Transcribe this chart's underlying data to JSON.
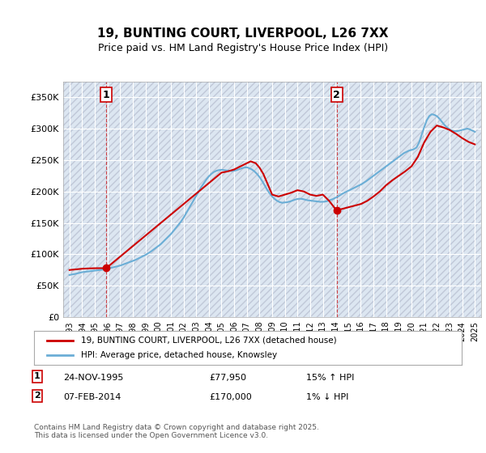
{
  "title": "19, BUNTING COURT, LIVERPOOL, L26 7XX",
  "subtitle": "Price paid vs. HM Land Registry's House Price Index (HPI)",
  "ylabel": "",
  "background_color": "#ffffff",
  "plot_bg_color": "#dce6f1",
  "grid_color": "#ffffff",
  "hatch_color": "#c0c8d8",
  "line1_color": "#cc0000",
  "line2_color": "#6baed6",
  "marker_color": "#cc0000",
  "point1_x": 1995.9,
  "point1_y": 77950,
  "point1_label": "1",
  "point2_x": 2014.1,
  "point2_y": 170000,
  "point2_label": "2",
  "ylim_min": 0,
  "ylim_max": 375000,
  "xlim_min": 1992.5,
  "xlim_max": 2025.5,
  "yticks": [
    0,
    50000,
    100000,
    150000,
    200000,
    250000,
    300000,
    350000
  ],
  "ytick_labels": [
    "£0",
    "£50K",
    "£100K",
    "£150K",
    "£200K",
    "£250K",
    "£300K",
    "£350K"
  ],
  "xticks": [
    1993,
    1994,
    1995,
    1996,
    1997,
    1998,
    1999,
    2000,
    2001,
    2002,
    2003,
    2004,
    2005,
    2006,
    2007,
    2008,
    2009,
    2010,
    2011,
    2012,
    2013,
    2014,
    2015,
    2016,
    2017,
    2018,
    2019,
    2020,
    2021,
    2022,
    2023,
    2024,
    2025
  ],
  "legend_label1": "19, BUNTING COURT, LIVERPOOL, L26 7XX (detached house)",
  "legend_label2": "HPI: Average price, detached house, Knowsley",
  "annotation1_date": "24-NOV-1995",
  "annotation1_price": "£77,950",
  "annotation1_hpi": "15% ↑ HPI",
  "annotation2_date": "07-FEB-2014",
  "annotation2_price": "£170,000",
  "annotation2_hpi": "1% ↓ HPI",
  "footer": "Contains HM Land Registry data © Crown copyright and database right 2025.\nThis data is licensed under the Open Government Licence v3.0.",
  "hpi_data_x": [
    1993.0,
    1993.1,
    1993.2,
    1993.3,
    1993.4,
    1993.5,
    1993.6,
    1993.7,
    1993.8,
    1993.9,
    1994.0,
    1994.2,
    1994.4,
    1994.6,
    1994.8,
    1995.0,
    1995.2,
    1995.4,
    1995.6,
    1995.8,
    1996.0,
    1996.2,
    1996.4,
    1996.6,
    1996.8,
    1997.0,
    1997.2,
    1997.4,
    1997.6,
    1997.8,
    1998.0,
    1998.2,
    1998.4,
    1998.6,
    1998.8,
    1999.0,
    1999.2,
    1999.4,
    1999.6,
    1999.8,
    2000.0,
    2000.2,
    2000.4,
    2000.6,
    2000.8,
    2001.0,
    2001.2,
    2001.4,
    2001.6,
    2001.8,
    2002.0,
    2002.2,
    2002.4,
    2002.6,
    2002.8,
    2003.0,
    2003.2,
    2003.4,
    2003.6,
    2003.8,
    2004.0,
    2004.2,
    2004.4,
    2004.6,
    2004.8,
    2005.0,
    2005.2,
    2005.4,
    2005.6,
    2005.8,
    2006.0,
    2006.2,
    2006.4,
    2006.6,
    2006.8,
    2007.0,
    2007.2,
    2007.4,
    2007.6,
    2007.8,
    2008.0,
    2008.2,
    2008.4,
    2008.6,
    2008.8,
    2009.0,
    2009.2,
    2009.4,
    2009.6,
    2009.8,
    2010.0,
    2010.2,
    2010.4,
    2010.6,
    2010.8,
    2011.0,
    2011.2,
    2011.4,
    2011.6,
    2011.8,
    2012.0,
    2012.2,
    2012.4,
    2012.6,
    2012.8,
    2013.0,
    2013.2,
    2013.4,
    2013.6,
    2013.8,
    2014.0,
    2014.2,
    2014.4,
    2014.6,
    2014.8,
    2015.0,
    2015.2,
    2015.4,
    2015.6,
    2015.8,
    2016.0,
    2016.2,
    2016.4,
    2016.6,
    2016.8,
    2017.0,
    2017.2,
    2017.4,
    2017.6,
    2017.8,
    2018.0,
    2018.2,
    2018.4,
    2018.6,
    2018.8,
    2019.0,
    2019.2,
    2019.4,
    2019.6,
    2019.8,
    2020.0,
    2020.2,
    2020.4,
    2020.6,
    2020.8,
    2021.0,
    2021.2,
    2021.4,
    2021.6,
    2021.8,
    2022.0,
    2022.2,
    2022.4,
    2022.6,
    2022.8,
    2023.0,
    2023.2,
    2023.4,
    2023.6,
    2023.8,
    2024.0,
    2024.2,
    2024.4,
    2024.6,
    2024.8,
    2025.0
  ],
  "hpi_data_y": [
    67000,
    67500,
    68000,
    68200,
    68500,
    69000,
    69500,
    70000,
    70500,
    71000,
    71500,
    72000,
    72500,
    73000,
    73500,
    74000,
    74500,
    75000,
    75500,
    76000,
    77000,
    78000,
    79000,
    80000,
    81000,
    82000,
    83500,
    85000,
    86500,
    88000,
    89500,
    91000,
    93000,
    95000,
    97000,
    99000,
    101500,
    104000,
    107000,
    110000,
    113000,
    116000,
    120000,
    124000,
    128000,
    132000,
    137000,
    142000,
    147000,
    152000,
    158000,
    165000,
    172000,
    179000,
    186000,
    193000,
    200000,
    207000,
    213000,
    219000,
    224000,
    228000,
    231000,
    233000,
    234000,
    234500,
    234000,
    233500,
    233000,
    232500,
    233000,
    234000,
    235500,
    237000,
    238000,
    238500,
    237000,
    235000,
    232000,
    228000,
    223000,
    217000,
    210000,
    203000,
    197000,
    192000,
    188000,
    185000,
    183000,
    182000,
    182500,
    183000,
    184000,
    185500,
    187000,
    188000,
    188500,
    188000,
    187000,
    186000,
    185500,
    185000,
    184500,
    184000,
    183500,
    183500,
    184000,
    185000,
    186500,
    188000,
    190000,
    192000,
    194500,
    197000,
    199000,
    201000,
    203000,
    205000,
    207000,
    209000,
    211000,
    213500,
    216000,
    219000,
    222000,
    225000,
    228000,
    231000,
    234000,
    237000,
    240000,
    243000,
    246000,
    249000,
    252000,
    255000,
    258000,
    261000,
    263000,
    265000,
    266000,
    267500,
    270000,
    278000,
    290000,
    302000,
    313000,
    320000,
    323000,
    322000,
    320000,
    316000,
    311000,
    306000,
    302000,
    299000,
    297000,
    296000,
    296000,
    297000,
    298000,
    299000,
    300000,
    299000,
    297000,
    295000
  ],
  "price_data_x": [
    1995.9,
    2014.1
  ],
  "price_data_y": [
    77950,
    170000
  ],
  "price_line_x": [
    1993.0,
    1993.5,
    1994.0,
    1994.5,
    1995.0,
    1995.5,
    1995.9,
    1995.9,
    2005.0,
    2005.5,
    2006.0,
    2006.5,
    2007.0,
    2007.3,
    2007.7,
    2008.0,
    2008.3,
    2009.0,
    2009.5,
    2010.0,
    2010.5,
    2011.0,
    2011.5,
    2012.0,
    2012.5,
    2013.0,
    2013.5,
    2014.0,
    2014.1,
    2016.0,
    2016.5,
    2017.0,
    2017.5,
    2018.0,
    2018.5,
    2019.0,
    2019.5,
    2020.0,
    2020.5,
    2021.0,
    2021.5,
    2022.0,
    2022.5,
    2023.0,
    2023.5,
    2024.0,
    2024.5,
    2025.0
  ],
  "price_line_y": [
    75000,
    76000,
    77000,
    77500,
    77800,
    77900,
    77950,
    77950,
    230000,
    232000,
    235000,
    240000,
    245000,
    248000,
    245000,
    238000,
    228000,
    195000,
    192000,
    195000,
    198000,
    202000,
    200000,
    195000,
    193000,
    195000,
    185000,
    172000,
    170000,
    180000,
    185000,
    192000,
    200000,
    210000,
    218000,
    225000,
    232000,
    240000,
    255000,
    278000,
    295000,
    305000,
    302000,
    298000,
    292000,
    285000,
    279000,
    275000
  ]
}
